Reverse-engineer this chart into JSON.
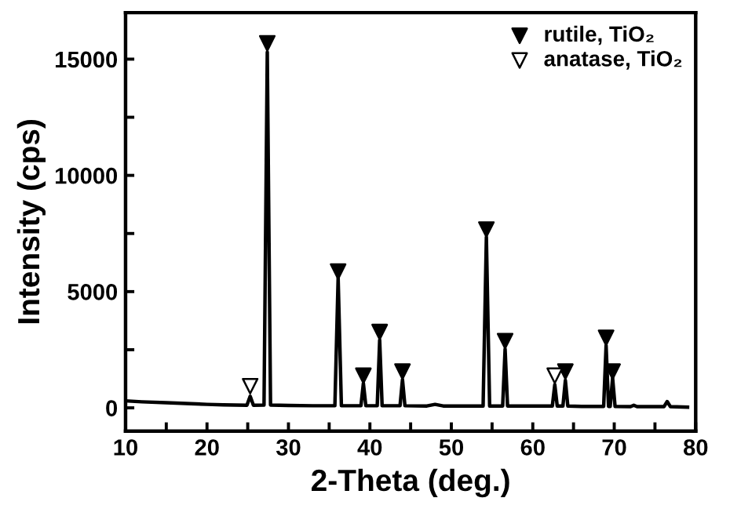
{
  "chart_data": {
    "type": "line",
    "xlabel": "2-Theta (deg.)",
    "ylabel": "Intensity (cps)",
    "xlim": [
      10,
      80
    ],
    "ylim": [
      -1000,
      17000
    ],
    "xticks": [
      10,
      {
        "value": 15,
        "label": null
      },
      20,
      {
        "value": 25,
        "label": null
      },
      30,
      {
        "value": 35,
        "label": null
      },
      40,
      {
        "value": 45,
        "label": null
      },
      50,
      {
        "value": 55,
        "label": null
      },
      60,
      {
        "value": 65,
        "label": null
      },
      70,
      {
        "value": 75,
        "label": null
      },
      80
    ],
    "yticks": [
      0,
      {
        "value": 2500,
        "label": null
      },
      5000,
      {
        "value": 7500,
        "label": null
      },
      10000,
      {
        "value": 12500,
        "label": null
      },
      15000
    ],
    "grid": false,
    "legend": "top right",
    "series": [
      {
        "color": "#000000",
        "marker": "none",
        "line_style": "solid",
        "x": [
          10,
          12,
          15,
          18,
          20,
          22,
          24.9,
          25.3,
          25.7,
          27.0,
          27.4,
          27.8,
          30,
          33,
          35.7,
          36.1,
          36.5,
          38.9,
          39.2,
          39.5,
          40.9,
          41.2,
          41.5,
          43.7,
          44.0,
          44.3,
          47,
          48,
          49,
          53.9,
          54.3,
          54.7,
          56.3,
          56.6,
          56.9,
          60,
          62.4,
          62.7,
          63.0,
          63.7,
          64.0,
          64.3,
          66,
          68.7,
          69.0,
          69.3,
          69.5,
          69.8,
          70.1,
          72.0,
          72.4,
          72.8,
          76.1,
          76.5,
          76.9,
          79
        ],
        "values": [
          300,
          260,
          220,
          180,
          150,
          130,
          110,
          500,
          110,
          120,
          15300,
          120,
          100,
          90,
          90,
          5590,
          90,
          90,
          1060,
          90,
          90,
          2920,
          90,
          90,
          1220,
          90,
          80,
          150,
          80,
          80,
          7350,
          80,
          80,
          2530,
          80,
          80,
          80,
          1000,
          80,
          80,
          1180,
          80,
          60,
          60,
          2690,
          60,
          60,
          1290,
          60,
          50,
          110,
          50,
          50,
          270,
          50,
          30
        ]
      },
      {
        "type": "scatter",
        "name": "rutile, TiO₂",
        "color": "#000000",
        "marker": "triangle",
        "x": [
          27.4,
          36.1,
          39.2,
          41.2,
          44.0,
          54.3,
          56.6,
          64.0,
          69.0,
          69.8
        ],
        "values": [
          15680,
          5860,
          1380,
          3260,
          1560,
          7670,
          2870,
          1560,
          3010,
          1560
        ]
      },
      {
        "type": "scatter",
        "name": "anatase, TiO₂",
        "color": "#ffffff",
        "marker": "triangle",
        "x": [
          25.3,
          62.7
        ],
        "values": [
          930,
          1380
        ]
      }
    ]
  }
}
